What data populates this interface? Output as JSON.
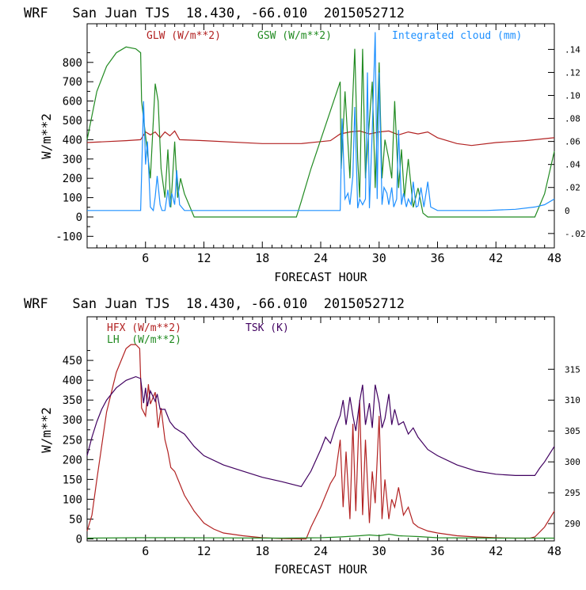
{
  "chart_data": [
    {
      "type": "line",
      "title": "WRF   San Juan TJS  18.430, -66.010  2015052712",
      "xlabel": "FORECAST HOUR",
      "ylabel": "W/m**2",
      "xlim": [
        0,
        48
      ],
      "ylim": [
        -160,
        1000
      ],
      "y2lim": [
        -0.0325,
        0.1623
      ],
      "xticks": [
        "6",
        "12",
        "18",
        "24",
        "30",
        "36",
        "42",
        "48"
      ],
      "yticks": [
        "-100",
        "0",
        "100",
        "200",
        "300",
        "400",
        "500",
        "600",
        "700",
        "800"
      ],
      "y2ticks": [
        "-.02",
        "0",
        ".02",
        ".04",
        ".06",
        ".08",
        ".10",
        ".12",
        ".14"
      ],
      "grid": false,
      "legend_position": "top",
      "series": [
        {
          "name": "GLW (W/m**2)",
          "color": "#b22222",
          "axis": "left",
          "x": [
            0,
            2,
            4,
            5.5,
            6,
            6.5,
            7,
            7.5,
            8,
            8.5,
            9,
            9.5,
            12,
            18,
            20,
            22,
            24,
            25,
            26,
            27,
            28,
            29,
            30,
            31,
            32,
            33,
            34,
            35,
            36,
            38,
            39.5,
            42,
            45,
            48
          ],
          "values": [
            385,
            390,
            395,
            400,
            440,
            425,
            440,
            410,
            440,
            420,
            445,
            400,
            395,
            380,
            380,
            380,
            390,
            395,
            430,
            440,
            445,
            430,
            440,
            445,
            425,
            440,
            430,
            440,
            410,
            380,
            370,
            385,
            395,
            410
          ]
        },
        {
          "name": "GSW (W/m**2)",
          "color": "#228b22",
          "axis": "left",
          "x": [
            0,
            1,
            2,
            3,
            4,
            5,
            5.5,
            5.6,
            6,
            6.5,
            7,
            7.3,
            7.6,
            8,
            8.3,
            8.6,
            9,
            9.3,
            9.6,
            10,
            11,
            12,
            21.5,
            22,
            23,
            24,
            25,
            26,
            26.1,
            26.5,
            27,
            27.2,
            27.5,
            27.8,
            28,
            28.3,
            28.6,
            29,
            29.3,
            29.6,
            30,
            30.3,
            30.6,
            31,
            31.3,
            31.6,
            32,
            32.3,
            32.6,
            33,
            33.5,
            34,
            34.5,
            35,
            36,
            46,
            47,
            48
          ],
          "values": [
            400,
            650,
            780,
            850,
            880,
            870,
            850,
            600,
            420,
            200,
            690,
            600,
            250,
            100,
            350,
            50,
            390,
            100,
            200,
            120,
            0,
            0,
            0,
            80,
            250,
            400,
            550,
            700,
            250,
            650,
            200,
            500,
            870,
            300,
            100,
            870,
            200,
            500,
            700,
            150,
            800,
            200,
            400,
            300,
            200,
            600,
            150,
            350,
            100,
            300,
            50,
            150,
            20,
            0,
            0,
            0,
            120,
            340
          ]
        },
        {
          "name": "Integrated cloud (mm)",
          "color": "#1e90ff",
          "axis": "right",
          "x": [
            0,
            5.5,
            5.8,
            6,
            6.2,
            6.5,
            6.8,
            7,
            7.2,
            7.5,
            7.7,
            8,
            8.3,
            8.5,
            8.7,
            9,
            9.2,
            9.5,
            10,
            26,
            26.2,
            26.5,
            26.8,
            27,
            27.3,
            27.5,
            27.8,
            28,
            28.3,
            28.6,
            28.8,
            29,
            29.3,
            29.6,
            29.8,
            30,
            30.3,
            30.5,
            30.8,
            31,
            31.3,
            31.5,
            31.8,
            32,
            32.3,
            32.5,
            32.8,
            33,
            33.3,
            33.5,
            33.8,
            34,
            34.3,
            34.6,
            35,
            35.3,
            36,
            38,
            41,
            44,
            46,
            47,
            48
          ],
          "values": [
            0,
            0,
            0.095,
            0.04,
            0.06,
            0.003,
            0,
            0.012,
            0.03,
            0.005,
            0,
            0,
            0.018,
            0.003,
            0.015,
            0.005,
            0.035,
            0.005,
            0,
            0,
            0.08,
            0.01,
            0.015,
            0.005,
            0.03,
            0.09,
            0.002,
            0.01,
            0.005,
            0.01,
            0.12,
            0.002,
            0.07,
            0.155,
            0.01,
            0.12,
            0.005,
            0.02,
            0.015,
            0.005,
            0.02,
            0.003,
            0.01,
            0.07,
            0.005,
            0.015,
            0.003,
            0.01,
            0.005,
            0.025,
            0.003,
            0.004,
            0.02,
            0.003,
            0.025,
            0.003,
            0,
            0,
            0,
            0.001,
            0.003,
            0.005,
            0.01
          ]
        }
      ]
    },
    {
      "type": "line",
      "title": "WRF   San Juan TJS  18.430, -66.010  2015052712",
      "xlabel": "FORECAST HOUR",
      "ylabel": "W/m**2",
      "xlim": [
        0,
        48
      ],
      "ylim": [
        -5,
        560
      ],
      "y2lim": [
        287.2,
        323.5
      ],
      "xticks": [
        "6",
        "12",
        "18",
        "24",
        "30",
        "36",
        "42",
        "48"
      ],
      "yticks": [
        "0",
        "50",
        "100",
        "150",
        "200",
        "250",
        "300",
        "350",
        "400",
        "450"
      ],
      "y2ticks": [
        "290",
        "295",
        "300",
        "305",
        "310",
        "315"
      ],
      "grid": false,
      "legend_position": "top-left",
      "series": [
        {
          "name": "HFX (W/m**2)",
          "color": "#b22222",
          "axis": "left",
          "x": [
            0,
            0.5,
            1,
            2,
            3,
            4,
            4.5,
            5,
            5.4,
            5.6,
            6,
            6.3,
            6.5,
            7,
            7.3,
            7.6,
            8,
            8.3,
            8.6,
            9,
            9.5,
            10,
            11,
            12,
            13,
            14,
            16,
            18,
            20,
            22,
            22.5,
            23,
            24,
            25,
            25.5,
            26,
            26.3,
            26.6,
            27,
            27.3,
            27.6,
            28,
            28.3,
            28.6,
            29,
            29.3,
            29.6,
            30,
            30.3,
            30.6,
            31,
            31.3,
            31.6,
            32,
            32.5,
            33,
            33.5,
            34,
            35,
            36,
            38,
            40,
            42,
            44,
            45.5,
            46,
            47,
            48
          ],
          "values": [
            20,
            60,
            150,
            320,
            420,
            480,
            490,
            490,
            480,
            330,
            310,
            390,
            340,
            370,
            280,
            330,
            250,
            220,
            180,
            170,
            140,
            110,
            70,
            40,
            25,
            15,
            8,
            3,
            1,
            0,
            0,
            30,
            80,
            140,
            160,
            250,
            80,
            220,
            50,
            290,
            70,
            350,
            60,
            250,
            40,
            170,
            90,
            310,
            50,
            150,
            50,
            100,
            80,
            130,
            60,
            80,
            40,
            30,
            20,
            15,
            8,
            5,
            3,
            2,
            2,
            5,
            30,
            70
          ]
        },
        {
          "name": "LH  (W/m**2)",
          "color": "#228b22",
          "axis": "left",
          "x": [
            0,
            5,
            10,
            20,
            24,
            26,
            28,
            29,
            30,
            31,
            32,
            34,
            36,
            42,
            48
          ],
          "values": [
            2,
            3,
            3,
            2,
            3,
            5,
            8,
            10,
            8,
            12,
            8,
            6,
            3,
            2,
            2
          ]
        },
        {
          "name": "TSK (K)",
          "color": "#400060",
          "axis": "right",
          "x": [
            0,
            0.5,
            1,
            1.5,
            2,
            3,
            4,
            5,
            5.5,
            5.8,
            6,
            6.2,
            6.5,
            7,
            7.2,
            7.5,
            8,
            8.5,
            9,
            9.5,
            10,
            11,
            12,
            14,
            16,
            18,
            20,
            22,
            23,
            24,
            24.5,
            25,
            25.5,
            26,
            26.3,
            26.6,
            27,
            27.3,
            27.6,
            28,
            28.3,
            28.6,
            29,
            29.3,
            29.6,
            30,
            30.3,
            30.6,
            31,
            31.3,
            31.6,
            32,
            32.5,
            33,
            33.5,
            34,
            35,
            36,
            38,
            40,
            42,
            44,
            46,
            46.5,
            47,
            48
          ],
          "values": [
            301,
            304,
            306.5,
            308.5,
            310,
            312,
            313.2,
            313.8,
            313.5,
            309.5,
            312,
            309,
            311.5,
            309.8,
            311,
            308.5,
            308.5,
            306.5,
            305.5,
            305,
            304.5,
            302.5,
            301,
            299.5,
            298.5,
            297.5,
            296.8,
            296,
            298.5,
            302,
            304,
            303,
            305.5,
            307.5,
            310,
            306,
            310.5,
            307.5,
            305,
            309.8,
            312.5,
            306,
            309.5,
            305.5,
            312.5,
            309.5,
            305.5,
            307,
            311,
            306,
            308.5,
            306,
            306.5,
            304.5,
            305.5,
            304,
            302,
            301,
            299.5,
            298.5,
            298,
            297.8,
            297.8,
            299,
            300,
            302.5
          ]
        }
      ]
    }
  ]
}
